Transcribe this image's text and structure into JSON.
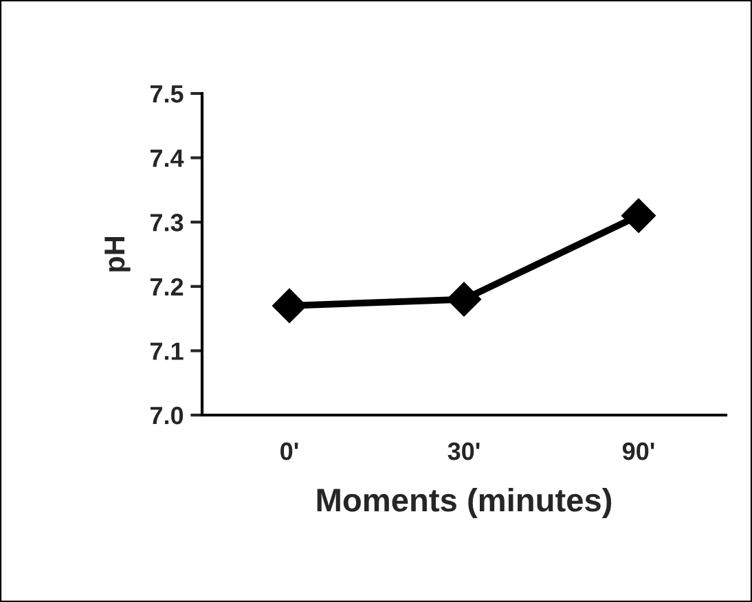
{
  "chart_data": {
    "type": "line",
    "xlabel": "Moments (minutes)",
    "ylabel": "pH",
    "categories": [
      "0'",
      "30'",
      "90'"
    ],
    "series": [
      {
        "color": "#000000",
        "values": [
          7.17,
          7.18,
          7.31
        ]
      }
    ],
    "ylim": [
      7.0,
      7.5
    ],
    "yticks": [
      {
        "value": 7.0,
        "label": "7.0"
      },
      {
        "value": 7.1,
        "label": "7.1"
      },
      {
        "value": 7.2,
        "label": "7.2"
      },
      {
        "value": 7.3,
        "label": "7.3"
      },
      {
        "value": 7.4,
        "label": "7.4"
      },
      {
        "value": 7.5,
        "label": "7.5"
      }
    ],
    "grid": false,
    "legend": false,
    "marker": "diamond",
    "line_style": "solid"
  }
}
